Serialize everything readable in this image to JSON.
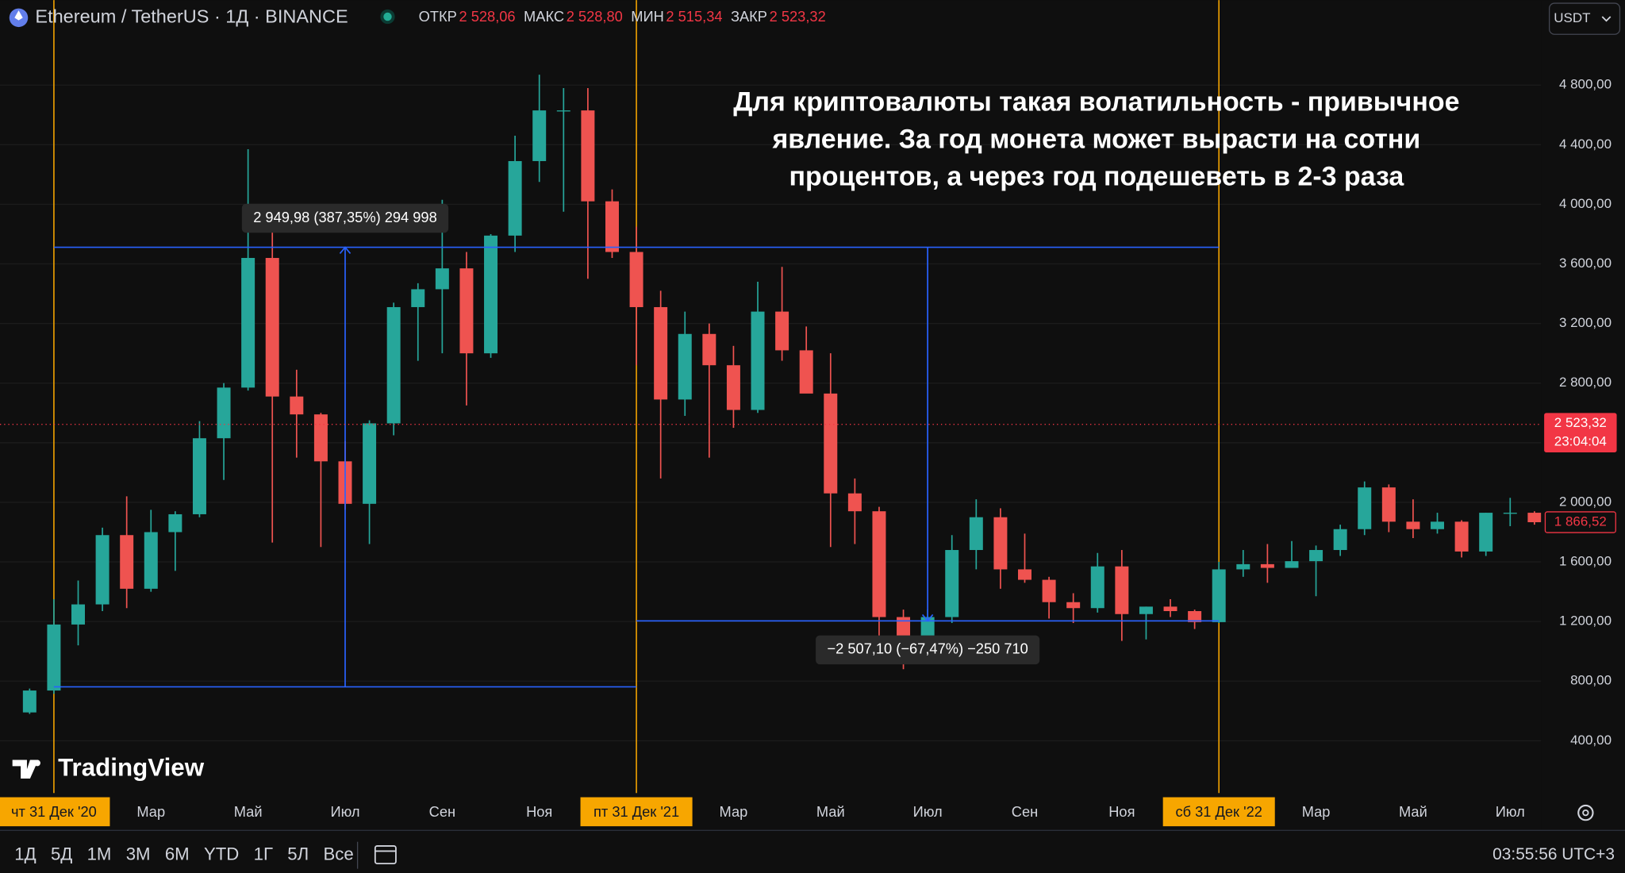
{
  "header": {
    "symbol": "Ethereum / TetherUS · 1Д · BINANCE",
    "ohlc": [
      {
        "key": "ОТКР",
        "value": "2 528,06"
      },
      {
        "key": "МАКС",
        "value": "2 528,80"
      },
      {
        "key": "МИН",
        "value": "2 515,34"
      },
      {
        "key": "ЗАКР",
        "value": "2 523,32"
      }
    ],
    "currency": "USDT"
  },
  "chart_data": {
    "type": "candlestick",
    "categories": [
      null,
      "чт 31 Дек '20",
      null,
      null,
      null,
      "Мар",
      null,
      null,
      null,
      "Май",
      null,
      null,
      null,
      "Июл",
      null,
      null,
      null,
      "Сен",
      null,
      null,
      null,
      "Ноя",
      null,
      null,
      null,
      "пт 31 Дек '21",
      null,
      null,
      null,
      "Мар",
      null,
      null,
      null,
      "Май",
      null,
      null,
      null,
      "Июл",
      null,
      null,
      null,
      "Сен",
      null,
      null,
      null,
      "Ноя",
      null,
      null,
      null,
      "сб 31 Дек '22",
      null,
      null,
      null,
      "Мар",
      null,
      null,
      null,
      "Май",
      null,
      null,
      null,
      "Июл",
      null
    ],
    "series": {
      "open": [
        590,
        737,
        1180,
        1315,
        1780,
        1420,
        1800,
        1920,
        2430,
        2770,
        3640,
        2710,
        2590,
        2275,
        1990,
        2530,
        3310,
        3430,
        3570,
        3000,
        3790,
        4290,
        4630,
        4630,
        4020,
        3680,
        3310,
        2690,
        3130,
        2920,
        2620,
        3280,
        3020,
        2730,
        2060,
        1940,
        1230,
        1070,
        1230,
        1680,
        1900,
        1550,
        1480,
        1330,
        1290,
        1570,
        1250,
        1300,
        1270,
        1196,
        1550,
        1585,
        1560,
        1605,
        1680,
        1820,
        2100,
        1870,
        1820,
        1870,
        1670,
        1930,
        1930
      ],
      "high": [
        750,
        1350,
        1475,
        1830,
        2040,
        1950,
        1940,
        2545,
        2800,
        4370,
        3850,
        2890,
        2600,
        2410,
        2550,
        3340,
        3470,
        4030,
        3680,
        3800,
        4460,
        4870,
        4780,
        4780,
        4100,
        3850,
        3420,
        3280,
        3200,
        3050,
        3480,
        3580,
        3180,
        3000,
        2160,
        1970,
        1280,
        1280,
        1780,
        2020,
        1960,
        1790,
        1500,
        1390,
        1660,
        1680,
        1300,
        1350,
        1280,
        1600,
        1680,
        1720,
        1740,
        1710,
        1850,
        2140,
        2120,
        2020,
        1930,
        1880,
        1930,
        2030,
        1940
      ],
      "low": [
        580,
        715,
        1040,
        1270,
        1290,
        1400,
        1540,
        1900,
        2150,
        2750,
        1730,
        2300,
        1700,
        1950,
        1720,
        2450,
        2950,
        3000,
        2650,
        2970,
        3680,
        4150,
        3950,
        3500,
        3640,
        2920,
        2160,
        2580,
        2300,
        2500,
        2600,
        2950,
        2780,
        1700,
        1720,
        1000,
        880,
        1000,
        1190,
        1550,
        1420,
        1460,
        1220,
        1190,
        1260,
        1070,
        1080,
        1230,
        1150,
        1190,
        1500,
        1460,
        1560,
        1370,
        1640,
        1780,
        1800,
        1760,
        1790,
        1630,
        1640,
        1840,
        1850
      ],
      "close": [
        737,
        1180,
        1315,
        1780,
        1420,
        1800,
        1920,
        2430,
        2770,
        3640,
        2710,
        2590,
        2275,
        1990,
        2530,
        3310,
        3430,
        3570,
        3000,
        3790,
        4290,
        4630,
        4630,
        4020,
        3680,
        3310,
        2690,
        3130,
        2920,
        2620,
        3280,
        3020,
        2730,
        2060,
        1940,
        1230,
        1070,
        1230,
        1680,
        1900,
        1550,
        1480,
        1330,
        1290,
        1570,
        1250,
        1300,
        1270,
        1196,
        1550,
        1585,
        1560,
        1605,
        1680,
        1820,
        2100,
        1870,
        1820,
        1870,
        1670,
        1930,
        1930,
        1866.52
      ]
    },
    "last_value_label": "1 866,52",
    "up_color": "#26a69a",
    "down_color": "#ef5350",
    "highlight_color": "#f7a600",
    "measure_color": "#2962ff",
    "ylim": [
      48.7,
      5370.4
    ],
    "yticks": [
      {
        "value": 400,
        "label": "400,00"
      },
      {
        "value": 800,
        "label": "800,00"
      },
      {
        "value": 1200,
        "label": "1 200,00"
      },
      {
        "value": 1600,
        "label": "1 600,00"
      },
      {
        "value": 2000,
        "label": "2 000,00"
      },
      {
        "value": 2400,
        "label": "2 400,00"
      },
      {
        "value": 2800,
        "label": "2 800,00"
      },
      {
        "value": 3200,
        "label": "3 200,00"
      },
      {
        "value": 3600,
        "label": "3 600,00"
      },
      {
        "value": 4000,
        "label": "4 000,00"
      },
      {
        "value": 4400,
        "label": "4 400,00"
      },
      {
        "value": 4800,
        "label": "4 800,00"
      }
    ],
    "grid": true,
    "current_price": {
      "value": 2523.32,
      "label": "2 523,32",
      "countdown": "23:04:04"
    },
    "measures": [
      {
        "from": 761.6,
        "to": 3711.58,
        "label": "2 949,98 (387,35%) 294 998"
      },
      {
        "from": 3711.58,
        "to": 1204.48,
        "label": "−2 507,10 (−67,47%) −250 710"
      }
    ],
    "annotation": [
      "Для криптовалюты такая волатильность - привычное",
      "явление. За год монета может вырасти на сотни",
      "процентов, а через год подешеветь в 2-3 раза"
    ]
  },
  "brand": "TradingView",
  "toolbar": {
    "ranges": [
      "1Д",
      "5Д",
      "1М",
      "3М",
      "6М",
      "YTD",
      "1Г",
      "5Л",
      "Все"
    ],
    "clock": "03:55:56 UTC+3"
  }
}
